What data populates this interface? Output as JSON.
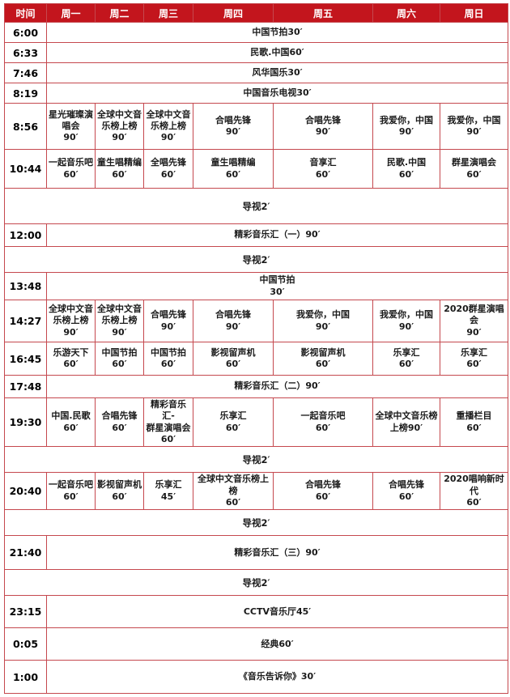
{
  "schedule": {
    "accent_color": "#c3151d",
    "border_color": "#c5484e",
    "header": [
      "时间",
      "周一",
      "周二",
      "周三",
      "周四",
      "周五",
      "周六",
      "周日"
    ],
    "rows": [
      {
        "kind": "span",
        "time": "6:00",
        "program": "中国节拍30′"
      },
      {
        "kind": "span",
        "time": "6:33",
        "program": "民歌.中国60′"
      },
      {
        "kind": "span",
        "time": "7:46",
        "program": "风华国乐30′"
      },
      {
        "kind": "span",
        "time": "8:19",
        "program": "中国音乐电视30′"
      },
      {
        "kind": "cells",
        "time": "8:56",
        "cells": [
          "星光璀璨演唱会\n90′",
          "全球中文音乐榜上榜\n90′",
          "全球中文音乐榜上榜\n90′",
          "合唱先锋\n90′",
          "合唱先锋\n90′",
          "我爱你，中国\n90′",
          "我爱你，中国\n90′"
        ]
      },
      {
        "kind": "cells",
        "time": "10:44",
        "cells": [
          "一起音乐吧\n60′",
          "童生唱精编\n60′",
          "全唱先锋\n60′",
          "童生唱精编\n60′",
          "音享汇\n60′",
          "民歌.中国\n60′",
          "群星演唱会\n60′"
        ]
      },
      {
        "kind": "full",
        "program": "导视2′"
      },
      {
        "kind": "span",
        "time": "12:00",
        "program": "精彩音乐汇（一）90′"
      },
      {
        "kind": "full",
        "program": "导视2′"
      },
      {
        "kind": "span",
        "time": "13:48",
        "program": "中国节拍\n30′"
      },
      {
        "kind": "cells",
        "time": "14:27",
        "cells": [
          "全球中文音乐榜上榜\n90′",
          "全球中文音乐榜上榜\n90′",
          "合唱先锋\n90′",
          "合唱先锋\n90′",
          "我爱你，中国\n90′",
          "我爱你，中国\n90′",
          "2020群星演唱会\n90′"
        ]
      },
      {
        "kind": "cells",
        "time": "16:45",
        "cells": [
          "乐游天下\n60′",
          "中国节拍\n60′",
          "中国节拍\n60′",
          "影视留声机\n60′",
          "影视留声机\n60′",
          "乐享汇\n60′",
          "乐享汇\n60′"
        ]
      },
      {
        "kind": "span",
        "time": "17:48",
        "program": "精彩音乐汇（二）90′"
      },
      {
        "kind": "cells",
        "time": "19:30",
        "cells": [
          "中国.民歌\n60′",
          "合唱先锋\n60′",
          "精彩音乐汇-\n群星演唱会\n60′",
          "乐享汇\n60′",
          "一起音乐吧\n60′",
          "全球中文音乐榜\n上榜90′",
          "重播栏目\n60′"
        ]
      },
      {
        "kind": "full",
        "program": "导视2′"
      },
      {
        "kind": "cells",
        "time": "20:40",
        "cells": [
          "一起音乐吧\n60′",
          "影视留声机\n60′",
          "乐享汇\n45′",
          "全球中文音乐榜上榜\n60′",
          "合唱先锋\n60′",
          "合唱先锋\n60′",
          "2020唱响新时代\n60′"
        ]
      },
      {
        "kind": "full",
        "program": "导视2′"
      },
      {
        "kind": "span",
        "time": "21:40",
        "program": "精彩音乐汇（三）90′"
      },
      {
        "kind": "full",
        "program": "导视2′"
      },
      {
        "kind": "span",
        "time": "23:15",
        "program": "CCTV音乐厅45′"
      },
      {
        "kind": "span",
        "time": "0:05",
        "program": "经典60′"
      },
      {
        "kind": "span",
        "time": "1:00",
        "program": "《音乐告诉你》30′"
      }
    ]
  }
}
